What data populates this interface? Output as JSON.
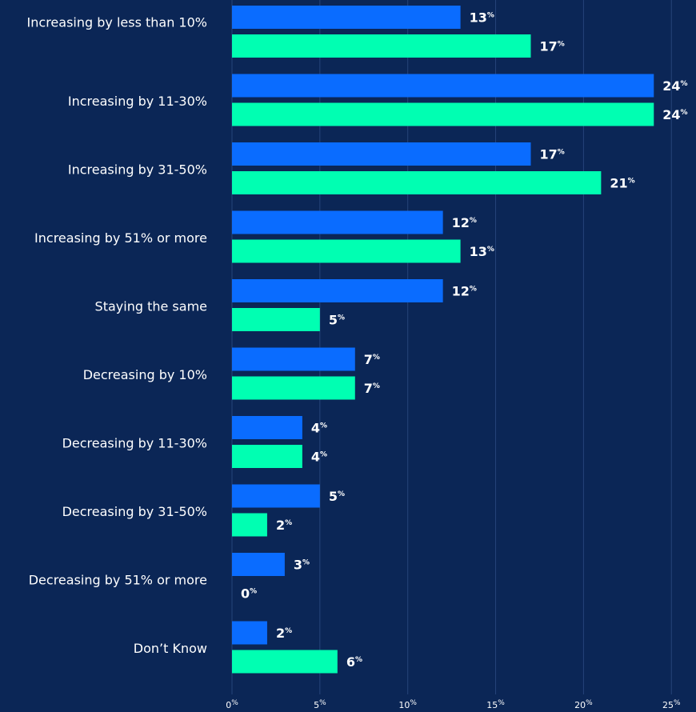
{
  "chart_data": {
    "type": "bar",
    "orientation": "horizontal",
    "categories": [
      "Increasing by less than 10%",
      "Increasing by 11-30%",
      "Increasing by 31-50%",
      "Increasing by 51% or more",
      "Staying the same",
      "Decreasing by 10%",
      "Decreasing by 11-30%",
      "Decreasing by 31-50%",
      "Decreasing by 51% or more",
      "Don’t Know"
    ],
    "series": [
      {
        "color": "#0a6cff",
        "values": [
          13,
          24,
          17,
          12,
          12,
          7,
          4,
          5,
          3,
          2
        ],
        "value_labels": [
          "13%",
          "24%",
          "17%",
          "12%",
          "12%",
          "7%",
          "4%",
          "5%",
          "3%",
          "2%"
        ]
      },
      {
        "color": "#00ffb2",
        "values": [
          17,
          24,
          21,
          13,
          5,
          7,
          4,
          2,
          0,
          6
        ],
        "value_labels": [
          "17%",
          "24%",
          "21%",
          "13%",
          "5%",
          "7%",
          "4%",
          "2%",
          "0%",
          "6%"
        ]
      }
    ],
    "xlim": [
      0,
      26.4
    ],
    "xticks": [
      {
        "value": 0,
        "label": "0%"
      },
      {
        "value": 5,
        "label": "5%"
      },
      {
        "value": 10,
        "label": "10%"
      },
      {
        "value": 15,
        "label": "15%"
      },
      {
        "value": 20,
        "label": "20%"
      },
      {
        "value": 25,
        "label": "25%"
      }
    ],
    "grid": true
  }
}
